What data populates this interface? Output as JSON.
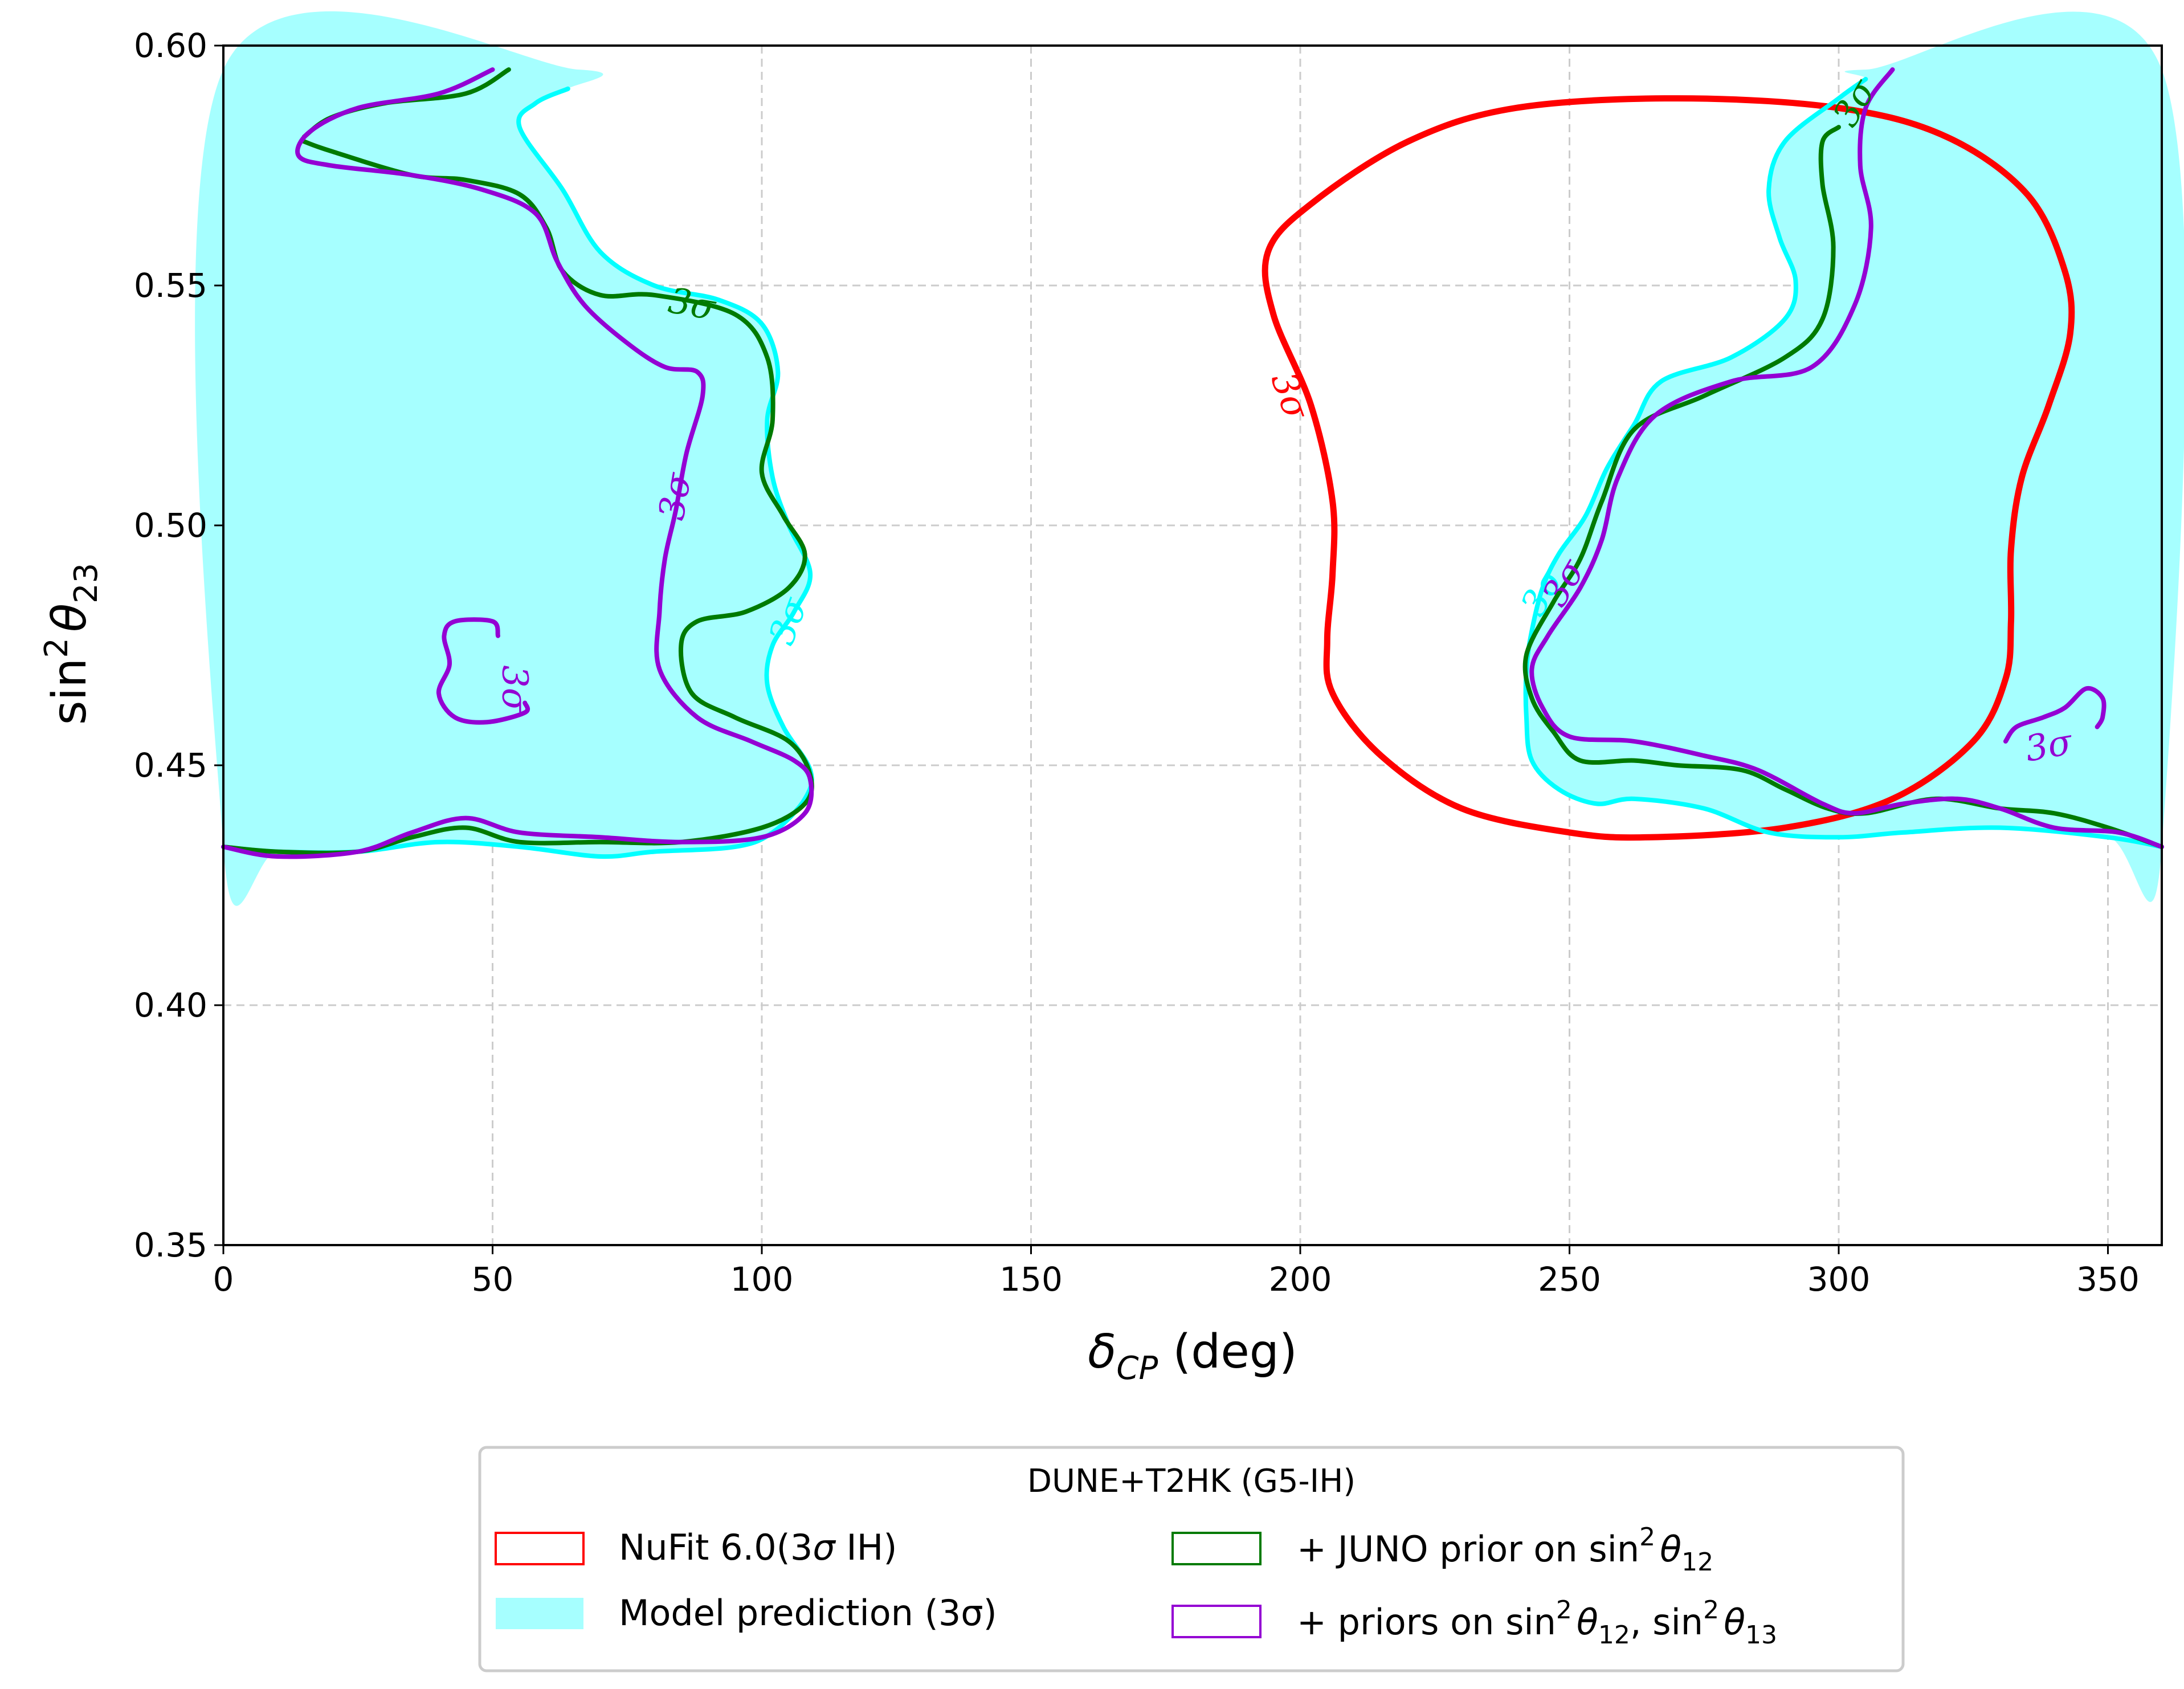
{
  "chart_data": {
    "type": "line",
    "xlabel_main": "δ",
    "xlabel_sub": "CP",
    "xlabel_unit": " (deg)",
    "ylabel_base": "sin",
    "ylabel_sup": "2",
    "ylabel_theta": "θ",
    "ylabel_sub": "23",
    "xlim": [
      0,
      360
    ],
    "ylim": [
      0.35,
      0.6
    ],
    "grid": true,
    "xticks": [
      "0",
      "50",
      "100",
      "150",
      "200",
      "250",
      "300",
      "350"
    ],
    "yticks": [
      "0.35",
      "0.40",
      "0.45",
      "0.50",
      "0.55",
      "0.60"
    ],
    "colors": {
      "nufit": "#ff0000",
      "model_fill": "#a6ffff",
      "model_edge": "#00ffff",
      "juno": "#007a00",
      "priors": "#9400d3"
    },
    "legend": {
      "position": "below",
      "title": "DUNE+T2HK (G5-IH)",
      "entries": [
        {
          "label_pre": "NuFit 6.0(3",
          "label_sym": "σ",
          "label_post": " IH)"
        },
        {
          "label_pre": "Model prediction (3σ)",
          "label_sym": "",
          "label_post": ""
        },
        {
          "label_pre": "+ JUNO prior on sin",
          "label_sup": "2",
          "label_theta": "θ",
          "label_sub": "12"
        },
        {
          "label_pre": "+ priors on sin",
          "label_sup": "2",
          "label_theta": "θ",
          "label_sub": "12",
          "label_mid": ", sin",
          "label_sup2": "2",
          "label_theta2": "θ",
          "label_sub2": "13"
        }
      ]
    },
    "contour_labels": {
      "nufit": "3σ",
      "model_left": "3σ",
      "model_right": "3σ",
      "juno_left": "3σ",
      "juno_right": "3σ",
      "priors_left": "3σ",
      "priors_island": "3σ",
      "priors_right": "3σ",
      "priors_right_island": "3σ"
    },
    "series": [
      {
        "name": "NuFit 6.0(3σ IH)",
        "closed": true,
        "points": [
          [
            205,
            0.476
          ],
          [
            206,
            0.465
          ],
          [
            215,
            0.452
          ],
          [
            230,
            0.441
          ],
          [
            250,
            0.436
          ],
          [
            265,
            0.435
          ],
          [
            290,
            0.437
          ],
          [
            310,
            0.443
          ],
          [
            325,
            0.455
          ],
          [
            331,
            0.468
          ],
          [
            332,
            0.48
          ],
          [
            332,
            0.495
          ],
          [
            334,
            0.51
          ],
          [
            339,
            0.525
          ],
          [
            343,
            0.54
          ],
          [
            342,
            0.553
          ],
          [
            335,
            0.569
          ],
          [
            320,
            0.581
          ],
          [
            300,
            0.587
          ],
          [
            270,
            0.589
          ],
          [
            240,
            0.587
          ],
          [
            220,
            0.58
          ],
          [
            202,
            0.567
          ],
          [
            194,
            0.557
          ],
          [
            195,
            0.544
          ],
          [
            202,
            0.525
          ],
          [
            206,
            0.505
          ],
          [
            206,
            0.49
          ]
        ]
      },
      {
        "name": "Model prediction (3σ) – left region",
        "closed": true,
        "points": [
          [
            0,
            0.433
          ],
          [
            10,
            0.432
          ],
          [
            25,
            0.432
          ],
          [
            40,
            0.434
          ],
          [
            55,
            0.433
          ],
          [
            70,
            0.431
          ],
          [
            80,
            0.432
          ],
          [
            95,
            0.433
          ],
          [
            102,
            0.436
          ],
          [
            108,
            0.443
          ],
          [
            109,
            0.449
          ],
          [
            104,
            0.458
          ],
          [
            101,
            0.467
          ],
          [
            102,
            0.475
          ],
          [
            106,
            0.482
          ],
          [
            109,
            0.49
          ],
          [
            105,
            0.5
          ],
          [
            102,
            0.51
          ],
          [
            101,
            0.522
          ],
          [
            103,
            0.532
          ],
          [
            100,
            0.542
          ],
          [
            92,
            0.547
          ],
          [
            80,
            0.55
          ],
          [
            70,
            0.557
          ],
          [
            63,
            0.57
          ],
          [
            55,
            0.583
          ],
          [
            58,
            0.588
          ],
          [
            64,
            0.591
          ],
          [
            66,
            0.595
          ],
          [
            0,
            0.595
          ]
        ]
      },
      {
        "name": "Model prediction (3σ) – right region",
        "closed": true,
        "points": [
          [
            360,
            0.433
          ],
          [
            350,
            0.435
          ],
          [
            330,
            0.437
          ],
          [
            312,
            0.436
          ],
          [
            300,
            0.435
          ],
          [
            287,
            0.436
          ],
          [
            275,
            0.441
          ],
          [
            262,
            0.443
          ],
          [
            255,
            0.442
          ],
          [
            248,
            0.445
          ],
          [
            243,
            0.451
          ],
          [
            242,
            0.46
          ],
          [
            242,
            0.47
          ],
          [
            243,
            0.478
          ],
          [
            245,
            0.487
          ],
          [
            248,
            0.494
          ],
          [
            253,
            0.502
          ],
          [
            257,
            0.512
          ],
          [
            262,
            0.521
          ],
          [
            267,
            0.53
          ],
          [
            280,
            0.535
          ],
          [
            290,
            0.543
          ],
          [
            292,
            0.551
          ],
          [
            289,
            0.56
          ],
          [
            287,
            0.57
          ],
          [
            290,
            0.58
          ],
          [
            300,
            0.589
          ],
          [
            305,
            0.593
          ],
          [
            305,
            0.595
          ],
          [
            360,
            0.595
          ]
        ]
      },
      {
        "name": "+ JUNO prior on sin²θ12 – left",
        "closed": false,
        "points": [
          [
            15,
            0.58
          ],
          [
            20,
            0.578
          ],
          [
            35,
            0.573
          ],
          [
            45,
            0.572
          ],
          [
            55,
            0.569
          ],
          [
            60,
            0.562
          ],
          [
            63,
            0.553
          ],
          [
            70,
            0.548
          ],
          [
            80,
            0.548
          ],
          [
            95,
            0.544
          ],
          [
            101,
            0.535
          ],
          [
            102,
            0.522
          ],
          [
            100,
            0.511
          ],
          [
            104,
            0.502
          ],
          [
            108,
            0.494
          ],
          [
            105,
            0.487
          ],
          [
            97,
            0.482
          ],
          [
            88,
            0.48
          ],
          [
            85,
            0.475
          ],
          [
            87,
            0.465
          ],
          [
            95,
            0.46
          ],
          [
            105,
            0.455
          ],
          [
            109,
            0.448
          ],
          [
            108,
            0.442
          ],
          [
            100,
            0.437
          ],
          [
            85,
            0.434
          ],
          [
            70,
            0.434
          ],
          [
            55,
            0.434
          ],
          [
            45,
            0.437
          ],
          [
            35,
            0.435
          ],
          [
            25,
            0.432
          ],
          [
            10,
            0.432
          ],
          [
            0,
            0.433
          ]
        ]
      },
      {
        "name": "+ JUNO prior on sin²θ12 – right",
        "closed": false,
        "points": [
          [
            53,
            0.595
          ],
          [
            45,
            0.59
          ],
          [
            30,
            0.588
          ],
          [
            20,
            0.585
          ],
          [
            15,
            0.581
          ]
        ]
      },
      {
        "name": "+ JUNO prior – right region",
        "closed": false,
        "points": [
          [
            360,
            0.433
          ],
          [
            350,
            0.437
          ],
          [
            340,
            0.44
          ],
          [
            330,
            0.441
          ],
          [
            318,
            0.443
          ],
          [
            305,
            0.44
          ],
          [
            298,
            0.441
          ],
          [
            290,
            0.445
          ],
          [
            282,
            0.449
          ],
          [
            270,
            0.45
          ],
          [
            262,
            0.451
          ],
          [
            252,
            0.451
          ],
          [
            247,
            0.457
          ],
          [
            243,
            0.464
          ],
          [
            242,
            0.473
          ],
          [
            247,
            0.484
          ],
          [
            252,
            0.493
          ],
          [
            256,
            0.505
          ],
          [
            262,
            0.52
          ],
          [
            275,
            0.527
          ],
          [
            290,
            0.535
          ],
          [
            297,
            0.543
          ],
          [
            299,
            0.558
          ],
          [
            297,
            0.571
          ],
          [
            297,
            0.58
          ],
          [
            300,
            0.583
          ]
        ]
      },
      {
        "name": "+ priors on sin²θ12, sin²θ13 – left",
        "closed": false,
        "points": [
          [
            50,
            0.595
          ],
          [
            40,
            0.59
          ],
          [
            25,
            0.587
          ],
          [
            16,
            0.582
          ],
          [
            14,
            0.577
          ],
          [
            20,
            0.575
          ],
          [
            35,
            0.573
          ],
          [
            48,
            0.57
          ],
          [
            58,
            0.565
          ],
          [
            62,
            0.555
          ],
          [
            67,
            0.546
          ],
          [
            75,
            0.538
          ],
          [
            82,
            0.533
          ],
          [
            88,
            0.532
          ],
          [
            89,
            0.527
          ],
          [
            86,
            0.515
          ],
          [
            84,
            0.503
          ],
          [
            82,
            0.493
          ],
          [
            81,
            0.482
          ],
          [
            81,
            0.47
          ],
          [
            88,
            0.46
          ],
          [
            98,
            0.455
          ],
          [
            106,
            0.451
          ],
          [
            109,
            0.447
          ],
          [
            108,
            0.44
          ],
          [
            100,
            0.435
          ],
          [
            85,
            0.434
          ],
          [
            70,
            0.435
          ],
          [
            55,
            0.436
          ],
          [
            45,
            0.439
          ],
          [
            35,
            0.436
          ],
          [
            25,
            0.432
          ],
          [
            10,
            0.431
          ],
          [
            0,
            0.433
          ]
        ]
      },
      {
        "name": "+ priors island left",
        "closed": false,
        "points": [
          [
            51,
            0.477
          ],
          [
            50,
            0.48
          ],
          [
            43,
            0.48
          ],
          [
            41,
            0.477
          ],
          [
            42,
            0.471
          ],
          [
            40,
            0.465
          ],
          [
            43,
            0.46
          ],
          [
            49,
            0.459
          ],
          [
            56,
            0.461
          ],
          [
            56,
            0.463
          ]
        ]
      },
      {
        "name": "+ priors – right region",
        "closed": false,
        "points": [
          [
            360,
            0.433
          ],
          [
            352,
            0.436
          ],
          [
            340,
            0.437
          ],
          [
            330,
            0.441
          ],
          [
            322,
            0.443
          ],
          [
            312,
            0.442
          ],
          [
            303,
            0.44
          ],
          [
            297,
            0.442
          ],
          [
            285,
            0.449
          ],
          [
            275,
            0.452
          ],
          [
            262,
            0.455
          ],
          [
            250,
            0.456
          ],
          [
            245,
            0.462
          ],
          [
            243,
            0.47
          ],
          [
            246,
            0.477
          ],
          [
            252,
            0.487
          ],
          [
            256,
            0.497
          ],
          [
            259,
            0.51
          ],
          [
            266,
            0.523
          ],
          [
            280,
            0.53
          ],
          [
            295,
            0.533
          ],
          [
            303,
            0.546
          ],
          [
            306,
            0.562
          ],
          [
            304,
            0.575
          ],
          [
            305,
            0.587
          ],
          [
            310,
            0.595
          ]
        ]
      },
      {
        "name": "+ priors island right",
        "closed": false,
        "points": [
          [
            331,
            0.455
          ],
          [
            333,
            0.458
          ],
          [
            338,
            0.46
          ],
          [
            342,
            0.462
          ],
          [
            346,
            0.466
          ],
          [
            349,
            0.464
          ],
          [
            349,
            0.46
          ],
          [
            348,
            0.458
          ]
        ]
      }
    ]
  }
}
